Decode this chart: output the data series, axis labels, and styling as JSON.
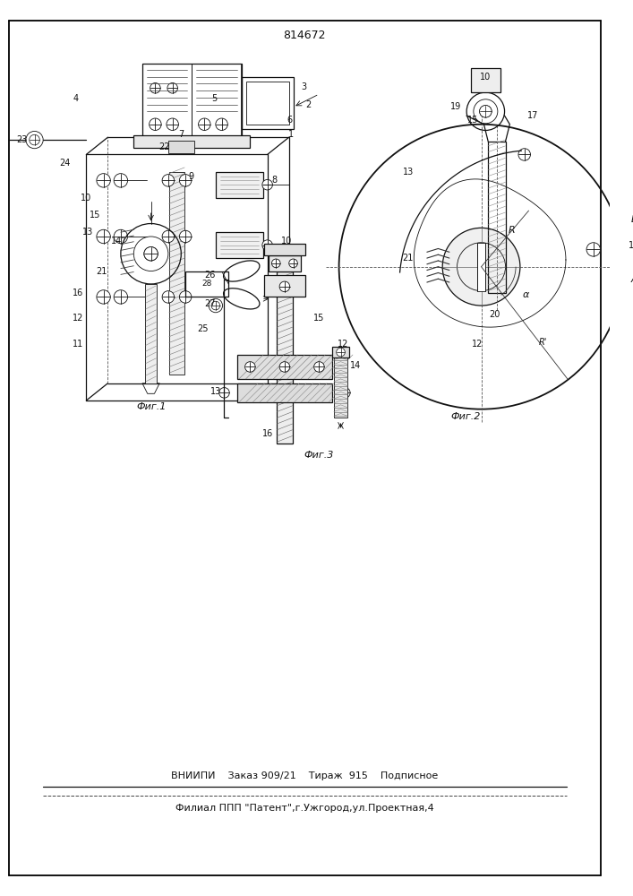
{
  "title_number": "814672",
  "bottom_line1": "ВНИИПИ    Заказ 909/21    Тираж  915    Подписное",
  "bottom_line2": "Филиал ППП \"Патент\",г.Ужгород,ул.Проектная,4",
  "fig1_label": "Фиг.1",
  "fig2_label": "Фиг.2",
  "fig3_label": "Фиг.3",
  "bg_color": "#ffffff",
  "line_color": "#1a1a1a"
}
